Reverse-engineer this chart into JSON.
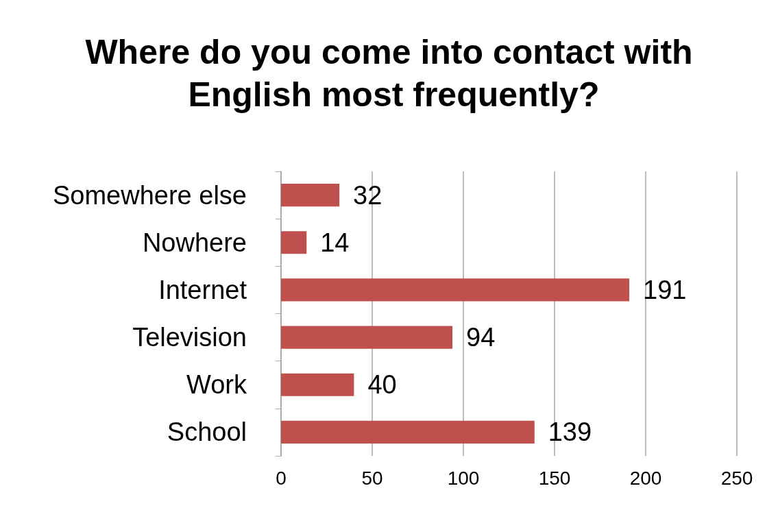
{
  "chart_data": {
    "type": "bar",
    "orientation": "horizontal",
    "title": "Where do you come into contact with English most frequently?",
    "categories": [
      "Somewhere else",
      "Nowhere",
      "Internet",
      "Television",
      "Work",
      "School"
    ],
    "values": [
      32,
      14,
      191,
      94,
      40,
      139
    ],
    "color": "#c0504d",
    "xlim": [
      0,
      250
    ],
    "xticks": [
      0,
      50,
      100,
      150,
      200,
      250
    ],
    "grid": "x",
    "data_labels": true
  }
}
